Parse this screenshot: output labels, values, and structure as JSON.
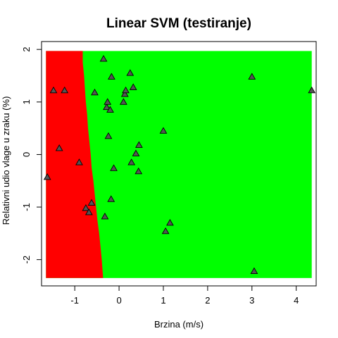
{
  "chart_data": {
    "type": "scatter",
    "title": "Linear SVM (testiranje)",
    "xlabel": "Brzina (m/s)",
    "ylabel": "Relativni udio vlage u zraku (%)",
    "xlim": [
      -1.75,
      4.45
    ],
    "ylim": [
      -2.5,
      2.15
    ],
    "x_ticks": [
      -1,
      0,
      1,
      2,
      3,
      4
    ],
    "y_ticks": [
      -2,
      -1,
      0,
      1,
      2
    ],
    "grid": false,
    "legend": "none",
    "background_colors": {
      "class_a": "#ff0000",
      "class_b": "#00ff00"
    },
    "decision_region": {
      "x_range": [
        -1.65,
        4.35
      ],
      "y_range": [
        -2.35,
        1.97
      ],
      "boundary": [
        {
          "y": 1.97,
          "x": -0.82
        },
        {
          "y": 1.75,
          "x": -0.82
        },
        {
          "y": 1.5,
          "x": -0.79
        },
        {
          "y": 1.25,
          "x": -0.77
        },
        {
          "y": 1.0,
          "x": -0.75
        },
        {
          "y": 0.75,
          "x": -0.72
        },
        {
          "y": 0.5,
          "x": -0.7
        },
        {
          "y": 0.25,
          "x": -0.67
        },
        {
          "y": 0.0,
          "x": -0.64
        },
        {
          "y": -0.25,
          "x": -0.62
        },
        {
          "y": -0.5,
          "x": -0.58
        },
        {
          "y": -0.75,
          "x": -0.55
        },
        {
          "y": -1.0,
          "x": -0.52
        },
        {
          "y": -1.25,
          "x": -0.49
        },
        {
          "y": -1.5,
          "x": -0.45
        },
        {
          "y": -1.75,
          "x": -0.42
        },
        {
          "y": -2.0,
          "x": -0.39
        },
        {
          "y": -2.35,
          "x": -0.36
        }
      ]
    },
    "points": [
      {
        "x": -1.62,
        "y": -0.43
      },
      {
        "x": -1.48,
        "y": 1.22
      },
      {
        "x": -1.23,
        "y": 1.22
      },
      {
        "x": -1.35,
        "y": 0.12
      },
      {
        "x": -0.9,
        "y": -0.15
      },
      {
        "x": -0.75,
        "y": -1.02
      },
      {
        "x": -0.68,
        "y": -1.1
      },
      {
        "x": -0.62,
        "y": -0.92
      },
      {
        "x": -0.55,
        "y": 1.18
      },
      {
        "x": -0.35,
        "y": 1.82
      },
      {
        "x": -0.32,
        "y": -1.18
      },
      {
        "x": -0.28,
        "y": 0.9
      },
      {
        "x": -0.26,
        "y": 1.0
      },
      {
        "x": -0.24,
        "y": 0.35
      },
      {
        "x": -0.2,
        "y": 0.85
      },
      {
        "x": -0.18,
        "y": -0.85
      },
      {
        "x": -0.17,
        "y": 1.48
      },
      {
        "x": -0.12,
        "y": -0.26
      },
      {
        "x": 0.1,
        "y": 1.0
      },
      {
        "x": 0.13,
        "y": 1.15
      },
      {
        "x": 0.15,
        "y": 1.22
      },
      {
        "x": 0.25,
        "y": 1.55
      },
      {
        "x": 0.28,
        "y": -0.15
      },
      {
        "x": 0.32,
        "y": 1.28
      },
      {
        "x": 0.38,
        "y": 0.02
      },
      {
        "x": 0.45,
        "y": 0.18
      },
      {
        "x": 0.44,
        "y": -0.32
      },
      {
        "x": 1.0,
        "y": 0.45
      },
      {
        "x": 1.05,
        "y": -1.46
      },
      {
        "x": 1.15,
        "y": -1.3
      },
      {
        "x": 3.0,
        "y": 1.48
      },
      {
        "x": 3.05,
        "y": -2.22
      },
      {
        "x": 4.35,
        "y": 1.22
      }
    ]
  }
}
